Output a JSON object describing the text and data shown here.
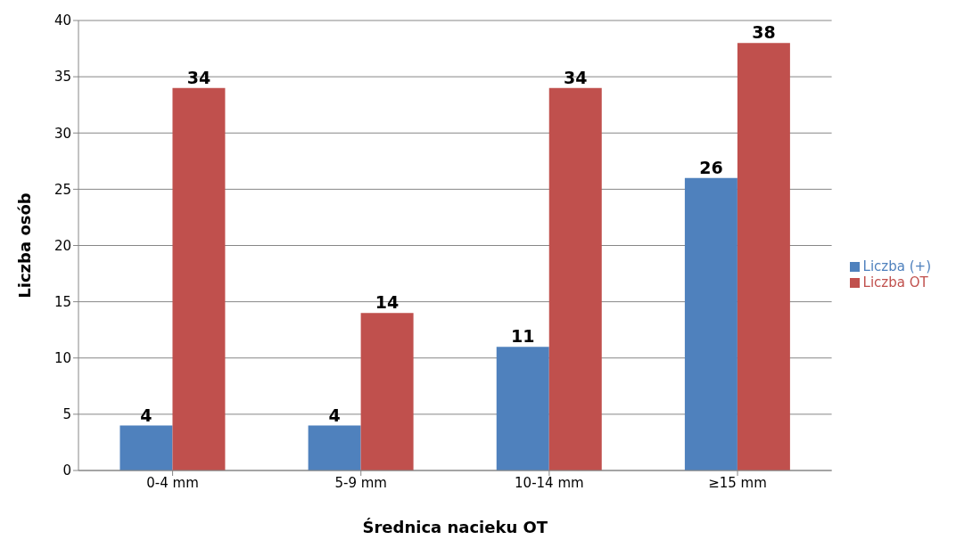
{
  "chart_data": {
    "type": "bar",
    "xlabel": "Średnica nacieku OT",
    "ylabel": "Liczba osób",
    "categories": [
      "0-4 mm",
      "5-9 mm",
      "10-14 mm",
      "≥15 mm"
    ],
    "series": [
      {
        "name": "Liczba (+)",
        "color": "#4f81bd",
        "values": [
          4,
          4,
          11,
          26
        ]
      },
      {
        "name": "Liczba OT",
        "color": "#c0504d",
        "values": [
          34,
          14,
          34,
          38
        ]
      }
    ],
    "ylim": [
      0,
      40
    ],
    "yticks": [
      0,
      5,
      10,
      15,
      20,
      25,
      30,
      35,
      40
    ],
    "grid": "y",
    "legend": "right",
    "data_labels": true
  }
}
